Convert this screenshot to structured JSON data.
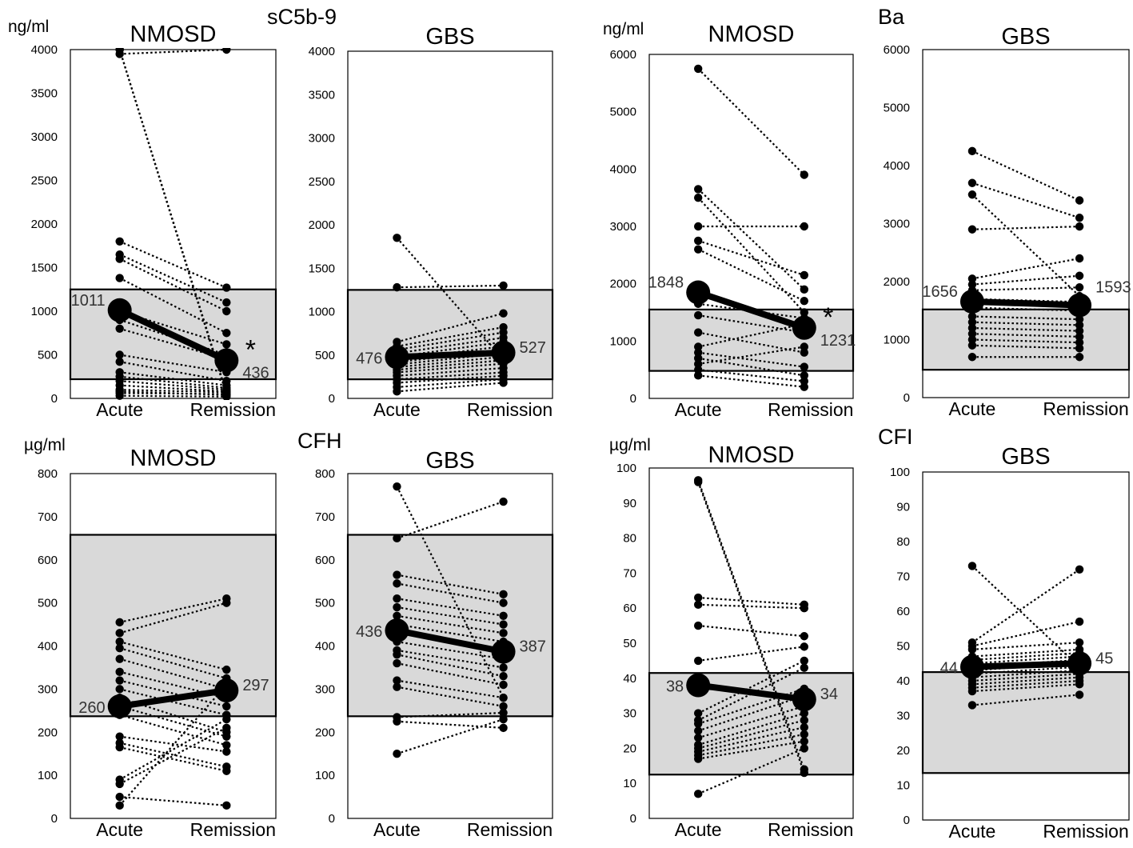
{
  "figure": {
    "group_labels": [
      "sC5b-9",
      "Ba",
      "CFH",
      "CFI"
    ],
    "unit_labels": [
      "ng/ml",
      "ng/ml",
      "µg/ml",
      "µg/ml"
    ]
  },
  "chart_data": [
    {
      "type": "scatter",
      "id": "sc5b9-nmosd",
      "title": "NMOSD",
      "ylabel": "ng/ml",
      "group_label": "sC5b-9",
      "categories": [
        "Acute",
        "Remission"
      ],
      "ylim": [
        0,
        4000
      ],
      "yticks": [
        0,
        500,
        1000,
        1500,
        2000,
        2500,
        3000,
        3500,
        4000
      ],
      "normal_range": [
        220,
        1250
      ],
      "mean": {
        "values": [
          1011,
          436
        ],
        "labels": [
          "1011",
          "436"
        ]
      },
      "significance": "*",
      "pairs": [
        [
          3950,
          4000
        ],
        [
          4000,
          60
        ],
        [
          4000,
          40
        ],
        [
          1800,
          1270
        ],
        [
          1650,
          1100
        ],
        [
          1600,
          1000
        ],
        [
          1380,
          750
        ],
        [
          1000,
          620
        ],
        [
          900,
          500
        ],
        [
          800,
          450
        ],
        [
          500,
          300
        ],
        [
          420,
          200
        ],
        [
          300,
          150
        ],
        [
          250,
          120
        ],
        [
          200,
          100
        ],
        [
          150,
          80
        ],
        [
          100,
          70
        ],
        [
          80,
          40
        ],
        [
          60,
          50
        ],
        [
          30,
          20
        ]
      ]
    },
    {
      "type": "scatter",
      "id": "sc5b9-gbs",
      "title": "GBS",
      "ylabel": "",
      "group_label": "",
      "categories": [
        "Acute",
        "Remission"
      ],
      "ylim": [
        0,
        4000
      ],
      "yticks": [
        0,
        500,
        1000,
        1500,
        2000,
        2500,
        3000,
        3500,
        4000
      ],
      "normal_range": [
        220,
        1250
      ],
      "mean": {
        "values": [
          476,
          527
        ],
        "labels": [
          "476",
          "527"
        ]
      },
      "significance": "",
      "pairs": [
        [
          1850,
          450
        ],
        [
          1280,
          1300
        ],
        [
          650,
          980
        ],
        [
          600,
          820
        ],
        [
          560,
          760
        ],
        [
          520,
          700
        ],
        [
          480,
          650
        ],
        [
          450,
          600
        ],
        [
          420,
          550
        ],
        [
          390,
          520
        ],
        [
          360,
          480
        ],
        [
          330,
          440
        ],
        [
          300,
          400
        ],
        [
          260,
          350
        ],
        [
          220,
          300
        ],
        [
          180,
          260
        ],
        [
          130,
          220
        ],
        [
          80,
          180
        ]
      ]
    },
    {
      "type": "scatter",
      "id": "ba-nmosd",
      "title": "NMOSD",
      "ylabel": "ng/ml",
      "group_label": "",
      "categories": [
        "Acute",
        "Remission"
      ],
      "ylim": [
        0,
        6000
      ],
      "yticks": [
        0,
        1000,
        2000,
        3000,
        4000,
        5000,
        6000
      ],
      "normal_range": [
        480,
        1550
      ],
      "mean": {
        "values": [
          1848,
          1231
        ],
        "labels": [
          "1848",
          "1231"
        ]
      },
      "significance": "*",
      "pairs": [
        [
          5750,
          3900
        ],
        [
          3650,
          1900
        ],
        [
          3500,
          1500
        ],
        [
          3000,
          3000
        ],
        [
          2750,
          2150
        ],
        [
          2600,
          1700
        ],
        [
          1650,
          1400
        ],
        [
          1450,
          1150
        ],
        [
          1150,
          800
        ],
        [
          900,
          1300
        ],
        [
          800,
          550
        ],
        [
          700,
          400
        ],
        [
          600,
          900
        ],
        [
          500,
          300
        ],
        [
          400,
          200
        ]
      ]
    },
    {
      "type": "scatter",
      "id": "ba-gbs",
      "title": "GBS",
      "ylabel": "",
      "group_label": "Ba",
      "categories": [
        "Acute",
        "Remission"
      ],
      "ylim": [
        0,
        6000
      ],
      "yticks": [
        0,
        1000,
        2000,
        3000,
        4000,
        5000,
        6000
      ],
      "normal_range": [
        480,
        1520
      ],
      "mean": {
        "values": [
          1656,
          1593
        ],
        "labels": [
          "1656",
          "1593"
        ]
      },
      "significance": "",
      "pairs": [
        [
          4250,
          3400
        ],
        [
          3700,
          3100
        ],
        [
          3500,
          1750
        ],
        [
          2900,
          2950
        ],
        [
          2050,
          2400
        ],
        [
          1950,
          2100
        ],
        [
          1850,
          1900
        ],
        [
          1700,
          1650
        ],
        [
          1550,
          1500
        ],
        [
          1400,
          1350
        ],
        [
          1300,
          1250
        ],
        [
          1200,
          1150
        ],
        [
          1100,
          1050
        ],
        [
          1000,
          950
        ],
        [
          900,
          850
        ],
        [
          700,
          700
        ]
      ]
    },
    {
      "type": "scatter",
      "id": "cfh-nmosd",
      "title": "NMOSD",
      "ylabel": "µg/ml",
      "group_label": "",
      "categories": [
        "Acute",
        "Remission"
      ],
      "ylim": [
        0,
        800
      ],
      "yticks": [
        0,
        100,
        200,
        300,
        400,
        500,
        600,
        700,
        800
      ],
      "normal_range": [
        237,
        658
      ],
      "mean": {
        "values": [
          260,
          297
        ],
        "labels": [
          "260",
          "297"
        ]
      },
      "significance": "",
      "pairs": [
        [
          455,
          510
        ],
        [
          430,
          500
        ],
        [
          410,
          345
        ],
        [
          395,
          325
        ],
        [
          370,
          300
        ],
        [
          340,
          280
        ],
        [
          320,
          260
        ],
        [
          300,
          240
        ],
        [
          280,
          200
        ],
        [
          260,
          190
        ],
        [
          240,
          170
        ],
        [
          190,
          155
        ],
        [
          175,
          120
        ],
        [
          165,
          110
        ],
        [
          90,
          230
        ],
        [
          80,
          210
        ],
        [
          50,
          30
        ],
        [
          30,
          310
        ]
      ]
    },
    {
      "type": "scatter",
      "id": "cfh-gbs",
      "title": "GBS",
      "ylabel": "",
      "group_label": "CFH",
      "categories": [
        "Acute",
        "Remission"
      ],
      "ylim": [
        0,
        800
      ],
      "yticks": [
        0,
        100,
        200,
        300,
        400,
        500,
        600,
        700,
        800
      ],
      "normal_range": [
        237,
        658
      ],
      "mean": {
        "values": [
          436,
          387
        ],
        "labels": [
          "436",
          "387"
        ]
      },
      "significance": "",
      "pairs": [
        [
          770,
          280
        ],
        [
          650,
          735
        ],
        [
          565,
          520
        ],
        [
          545,
          500
        ],
        [
          510,
          470
        ],
        [
          490,
          450
        ],
        [
          470,
          430
        ],
        [
          450,
          410
        ],
        [
          430,
          390
        ],
        [
          410,
          370
        ],
        [
          390,
          350
        ],
        [
          380,
          330
        ],
        [
          360,
          310
        ],
        [
          320,
          280
        ],
        [
          305,
          260
        ],
        [
          235,
          245
        ],
        [
          225,
          210
        ],
        [
          150,
          230
        ]
      ]
    },
    {
      "type": "scatter",
      "id": "cfi-nmosd",
      "title": "NMOSD",
      "ylabel": "µg/ml",
      "group_label": "",
      "categories": [
        "Acute",
        "Remission"
      ],
      "ylim": [
        0,
        100
      ],
      "yticks": [
        0,
        10,
        20,
        30,
        40,
        50,
        60,
        70,
        80,
        90,
        100
      ],
      "normal_range": [
        12.5,
        41.5
      ],
      "mean": {
        "values": [
          38,
          34
        ],
        "labels": [
          "38",
          "34"
        ]
      },
      "significance": "",
      "pairs": [
        [
          96.5,
          14
        ],
        [
          96,
          13
        ],
        [
          63,
          61
        ],
        [
          61,
          60
        ],
        [
          55,
          52
        ],
        [
          45,
          49
        ],
        [
          30,
          45
        ],
        [
          28,
          43
        ],
        [
          27,
          37
        ],
        [
          25,
          35
        ],
        [
          23,
          32
        ],
        [
          21,
          30
        ],
        [
          20,
          28
        ],
        [
          19,
          26
        ],
        [
          18,
          24
        ],
        [
          17,
          22
        ],
        [
          7,
          20
        ]
      ]
    },
    {
      "type": "scatter",
      "id": "cfi-gbs",
      "title": "GBS",
      "ylabel": "",
      "group_label": "CFI",
      "categories": [
        "Acute",
        "Remission"
      ],
      "ylim": [
        0,
        100
      ],
      "yticks": [
        0,
        10,
        20,
        30,
        40,
        50,
        60,
        70,
        80,
        90,
        100
      ],
      "normal_range": [
        13.5,
        42.5
      ],
      "mean": {
        "values": [
          44,
          45
        ],
        "labels": [
          "44",
          "45"
        ]
      },
      "significance": "",
      "pairs": [
        [
          73,
          44
        ],
        [
          51,
          72
        ],
        [
          50,
          57
        ],
        [
          49,
          51
        ],
        [
          47,
          49
        ],
        [
          46,
          48
        ],
        [
          45,
          47
        ],
        [
          44,
          46
        ],
        [
          43,
          45
        ],
        [
          42,
          44
        ],
        [
          41,
          43
        ],
        [
          40,
          42
        ],
        [
          39,
          41
        ],
        [
          38,
          40
        ],
        [
          37,
          39
        ],
        [
          33,
          36
        ]
      ]
    }
  ]
}
